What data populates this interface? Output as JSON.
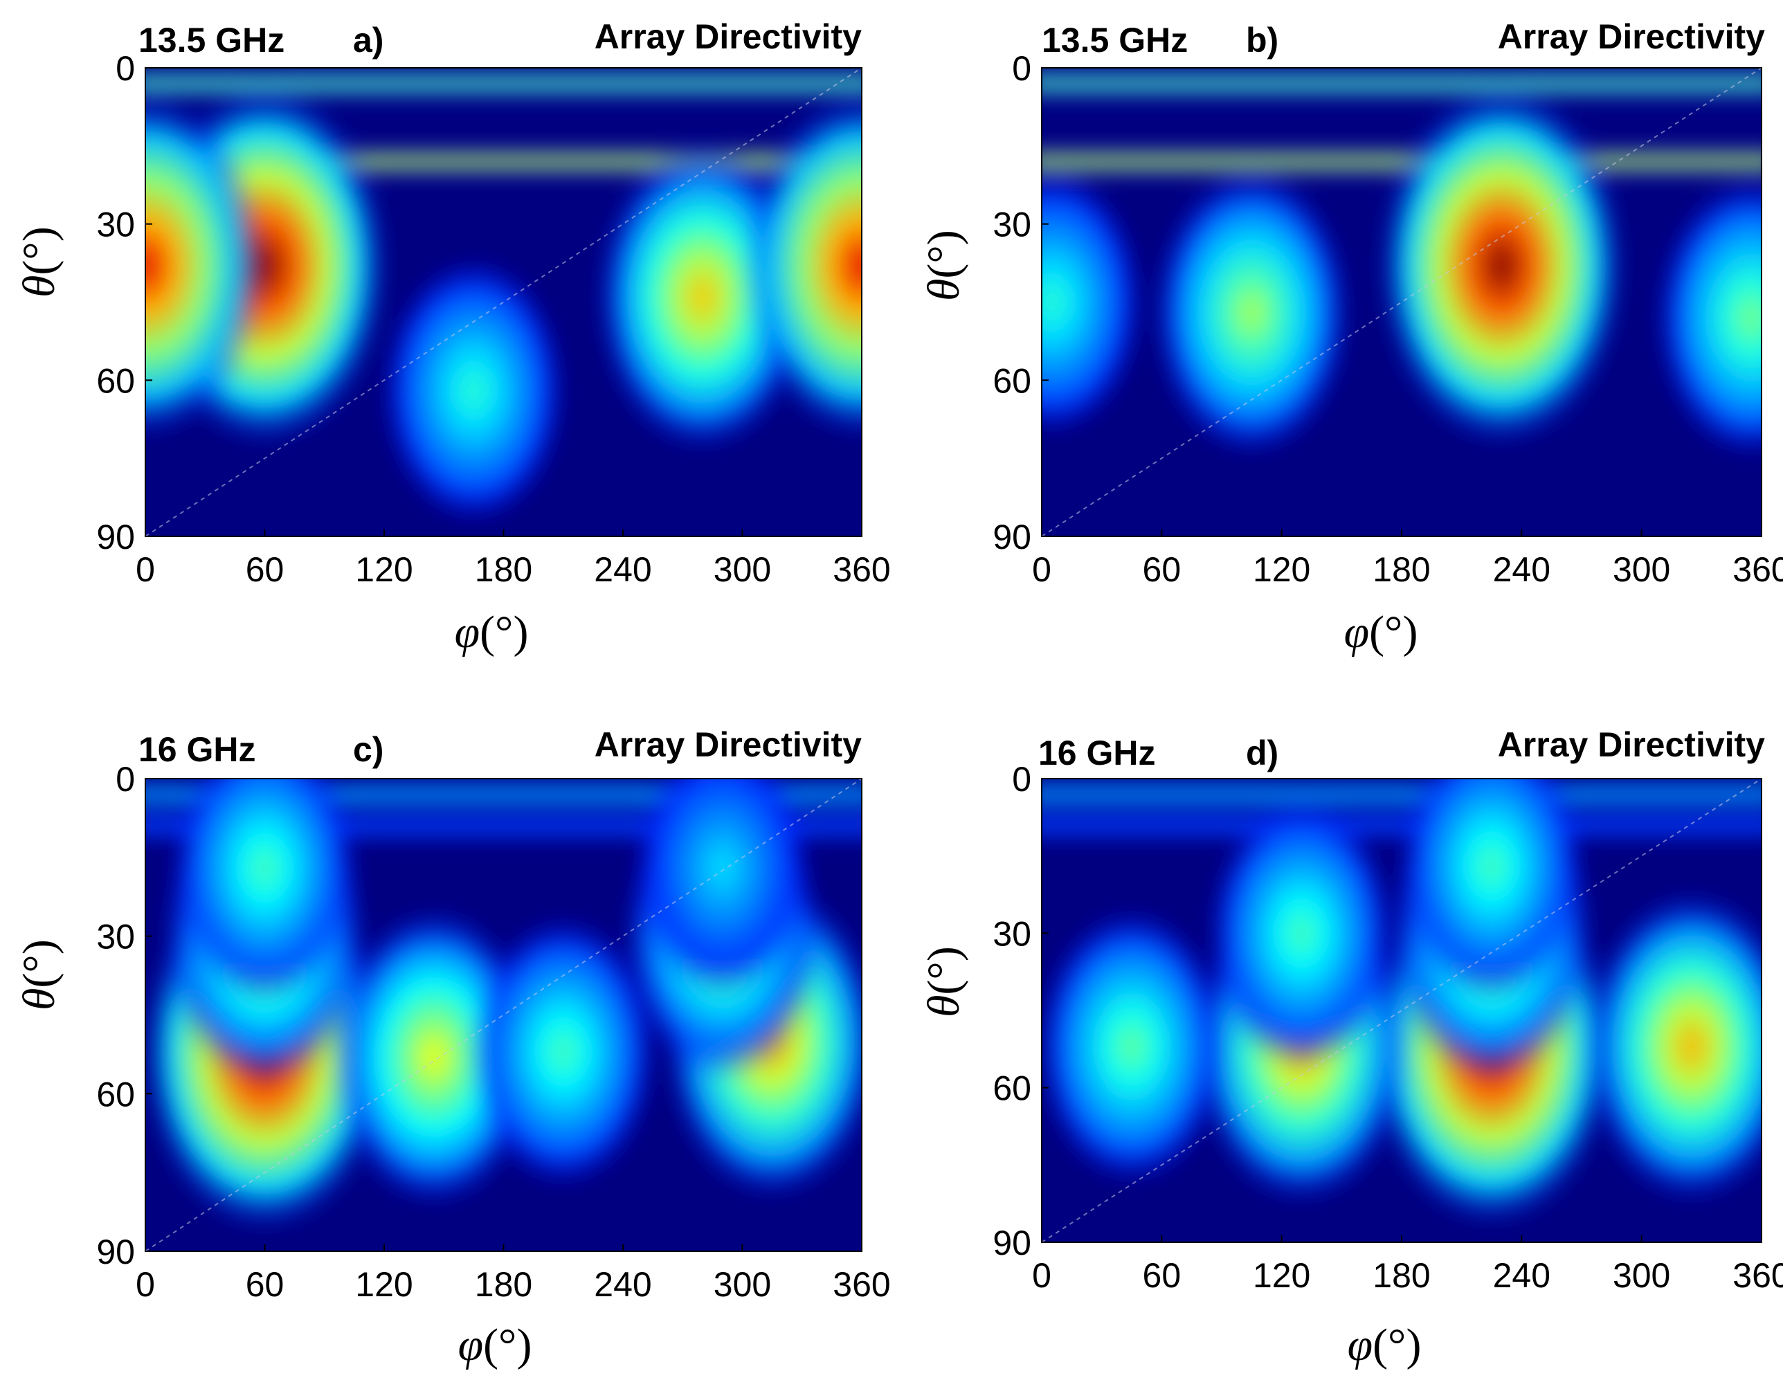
{
  "figure": {
    "theta_symbol": "θ",
    "phi_symbol": "φ",
    "unit_text": "(°)"
  },
  "chart_data": [
    {
      "type": "heatmap",
      "panel": "a)",
      "frequency": "13.5 GHz",
      "title": "Array Directivity",
      "xlabel": "φ(°)",
      "ylabel": "θ(°)",
      "xlim": [
        0,
        360
      ],
      "ylim": [
        0,
        90
      ],
      "xticks": [
        0,
        60,
        120,
        180,
        240,
        300,
        360
      ],
      "yticks": [
        0,
        30,
        60,
        90
      ],
      "colormap": "jet",
      "color_range": [
        0,
        1
      ],
      "lobes": [
        {
          "phi": 60,
          "theta": 38,
          "level": 1.0
        },
        {
          "phi": 165,
          "theta": 62,
          "level": 0.42
        },
        {
          "phi": 280,
          "theta": 44,
          "level": 0.68
        },
        {
          "phi": 360,
          "theta": 38,
          "level": 0.9
        },
        {
          "phi": 0,
          "theta": 38,
          "level": 0.9
        }
      ],
      "bands": [
        {
          "theta": 3,
          "level": 0.45
        },
        {
          "theta": 18,
          "level": 0.55
        }
      ]
    },
    {
      "type": "heatmap",
      "panel": "b)",
      "frequency": "13.5 GHz",
      "title": "Array Directivity",
      "xlabel": "φ(°)",
      "ylabel": "θ(°)",
      "xlim": [
        0,
        360
      ],
      "ylim": [
        0,
        90
      ],
      "xticks": [
        0,
        60,
        120,
        180,
        240,
        300,
        360
      ],
      "yticks": [
        0,
        30,
        60,
        90
      ],
      "colormap": "jet",
      "color_range": [
        0,
        1
      ],
      "lobes": [
        {
          "phi": 230,
          "theta": 38,
          "level": 1.0
        },
        {
          "phi": 105,
          "theta": 47,
          "level": 0.55
        },
        {
          "phi": 355,
          "theta": 48,
          "level": 0.5
        },
        {
          "phi": 5,
          "theta": 45,
          "level": 0.42
        }
      ],
      "bands": [
        {
          "theta": 3,
          "level": 0.45
        },
        {
          "theta": 18,
          "level": 0.55
        }
      ]
    },
    {
      "type": "heatmap",
      "panel": "c)",
      "frequency": "16 GHz",
      "title": "Array Directivity",
      "xlabel": "φ(°)",
      "ylabel": "θ(°)",
      "xlim": [
        0,
        360
      ],
      "ylim": [
        0,
        90
      ],
      "xticks": [
        0,
        60,
        120,
        180,
        240,
        300,
        360
      ],
      "yticks": [
        0,
        30,
        60,
        90
      ],
      "colormap": "jet",
      "color_range": [
        0,
        1
      ],
      "lobes": [
        {
          "phi": 60,
          "theta": 52,
          "level": 1.0
        },
        {
          "phi": 145,
          "theta": 53,
          "level": 0.62
        },
        {
          "phi": 210,
          "theta": 52,
          "level": 0.45
        },
        {
          "phi": 315,
          "theta": 50,
          "level": 0.72
        },
        {
          "phi": 60,
          "theta": 30,
          "level": 0.6
        },
        {
          "phi": 290,
          "theta": 30,
          "level": 0.55
        },
        {
          "phi": 60,
          "theta": 17,
          "level": 0.45
        },
        {
          "phi": 290,
          "theta": 17,
          "level": 0.35
        }
      ],
      "bands": [
        {
          "theta": 3,
          "level": 0.3
        },
        {
          "theta": 9,
          "level": 0.2
        }
      ]
    },
    {
      "type": "heatmap",
      "panel": "d)",
      "frequency": "16 GHz",
      "title": "Array Directivity",
      "xlabel": "φ(°)",
      "ylabel": "θ(°)",
      "xlim": [
        0,
        360
      ],
      "ylim": [
        0,
        90
      ],
      "xticks": [
        0,
        60,
        120,
        180,
        240,
        300,
        360
      ],
      "yticks": [
        0,
        30,
        60,
        90
      ],
      "colormap": "jet",
      "color_range": [
        0,
        1
      ],
      "lobes": [
        {
          "phi": 225,
          "theta": 52,
          "level": 1.0
        },
        {
          "phi": 130,
          "theta": 52,
          "level": 0.72
        },
        {
          "phi": 325,
          "theta": 52,
          "level": 0.7
        },
        {
          "phi": 45,
          "theta": 52,
          "level": 0.48
        },
        {
          "phi": 225,
          "theta": 30,
          "level": 0.6
        },
        {
          "phi": 130,
          "theta": 30,
          "level": 0.45
        },
        {
          "phi": 225,
          "theta": 17,
          "level": 0.45
        }
      ],
      "bands": [
        {
          "theta": 3,
          "level": 0.3
        },
        {
          "theta": 9,
          "level": 0.2
        }
      ]
    }
  ]
}
